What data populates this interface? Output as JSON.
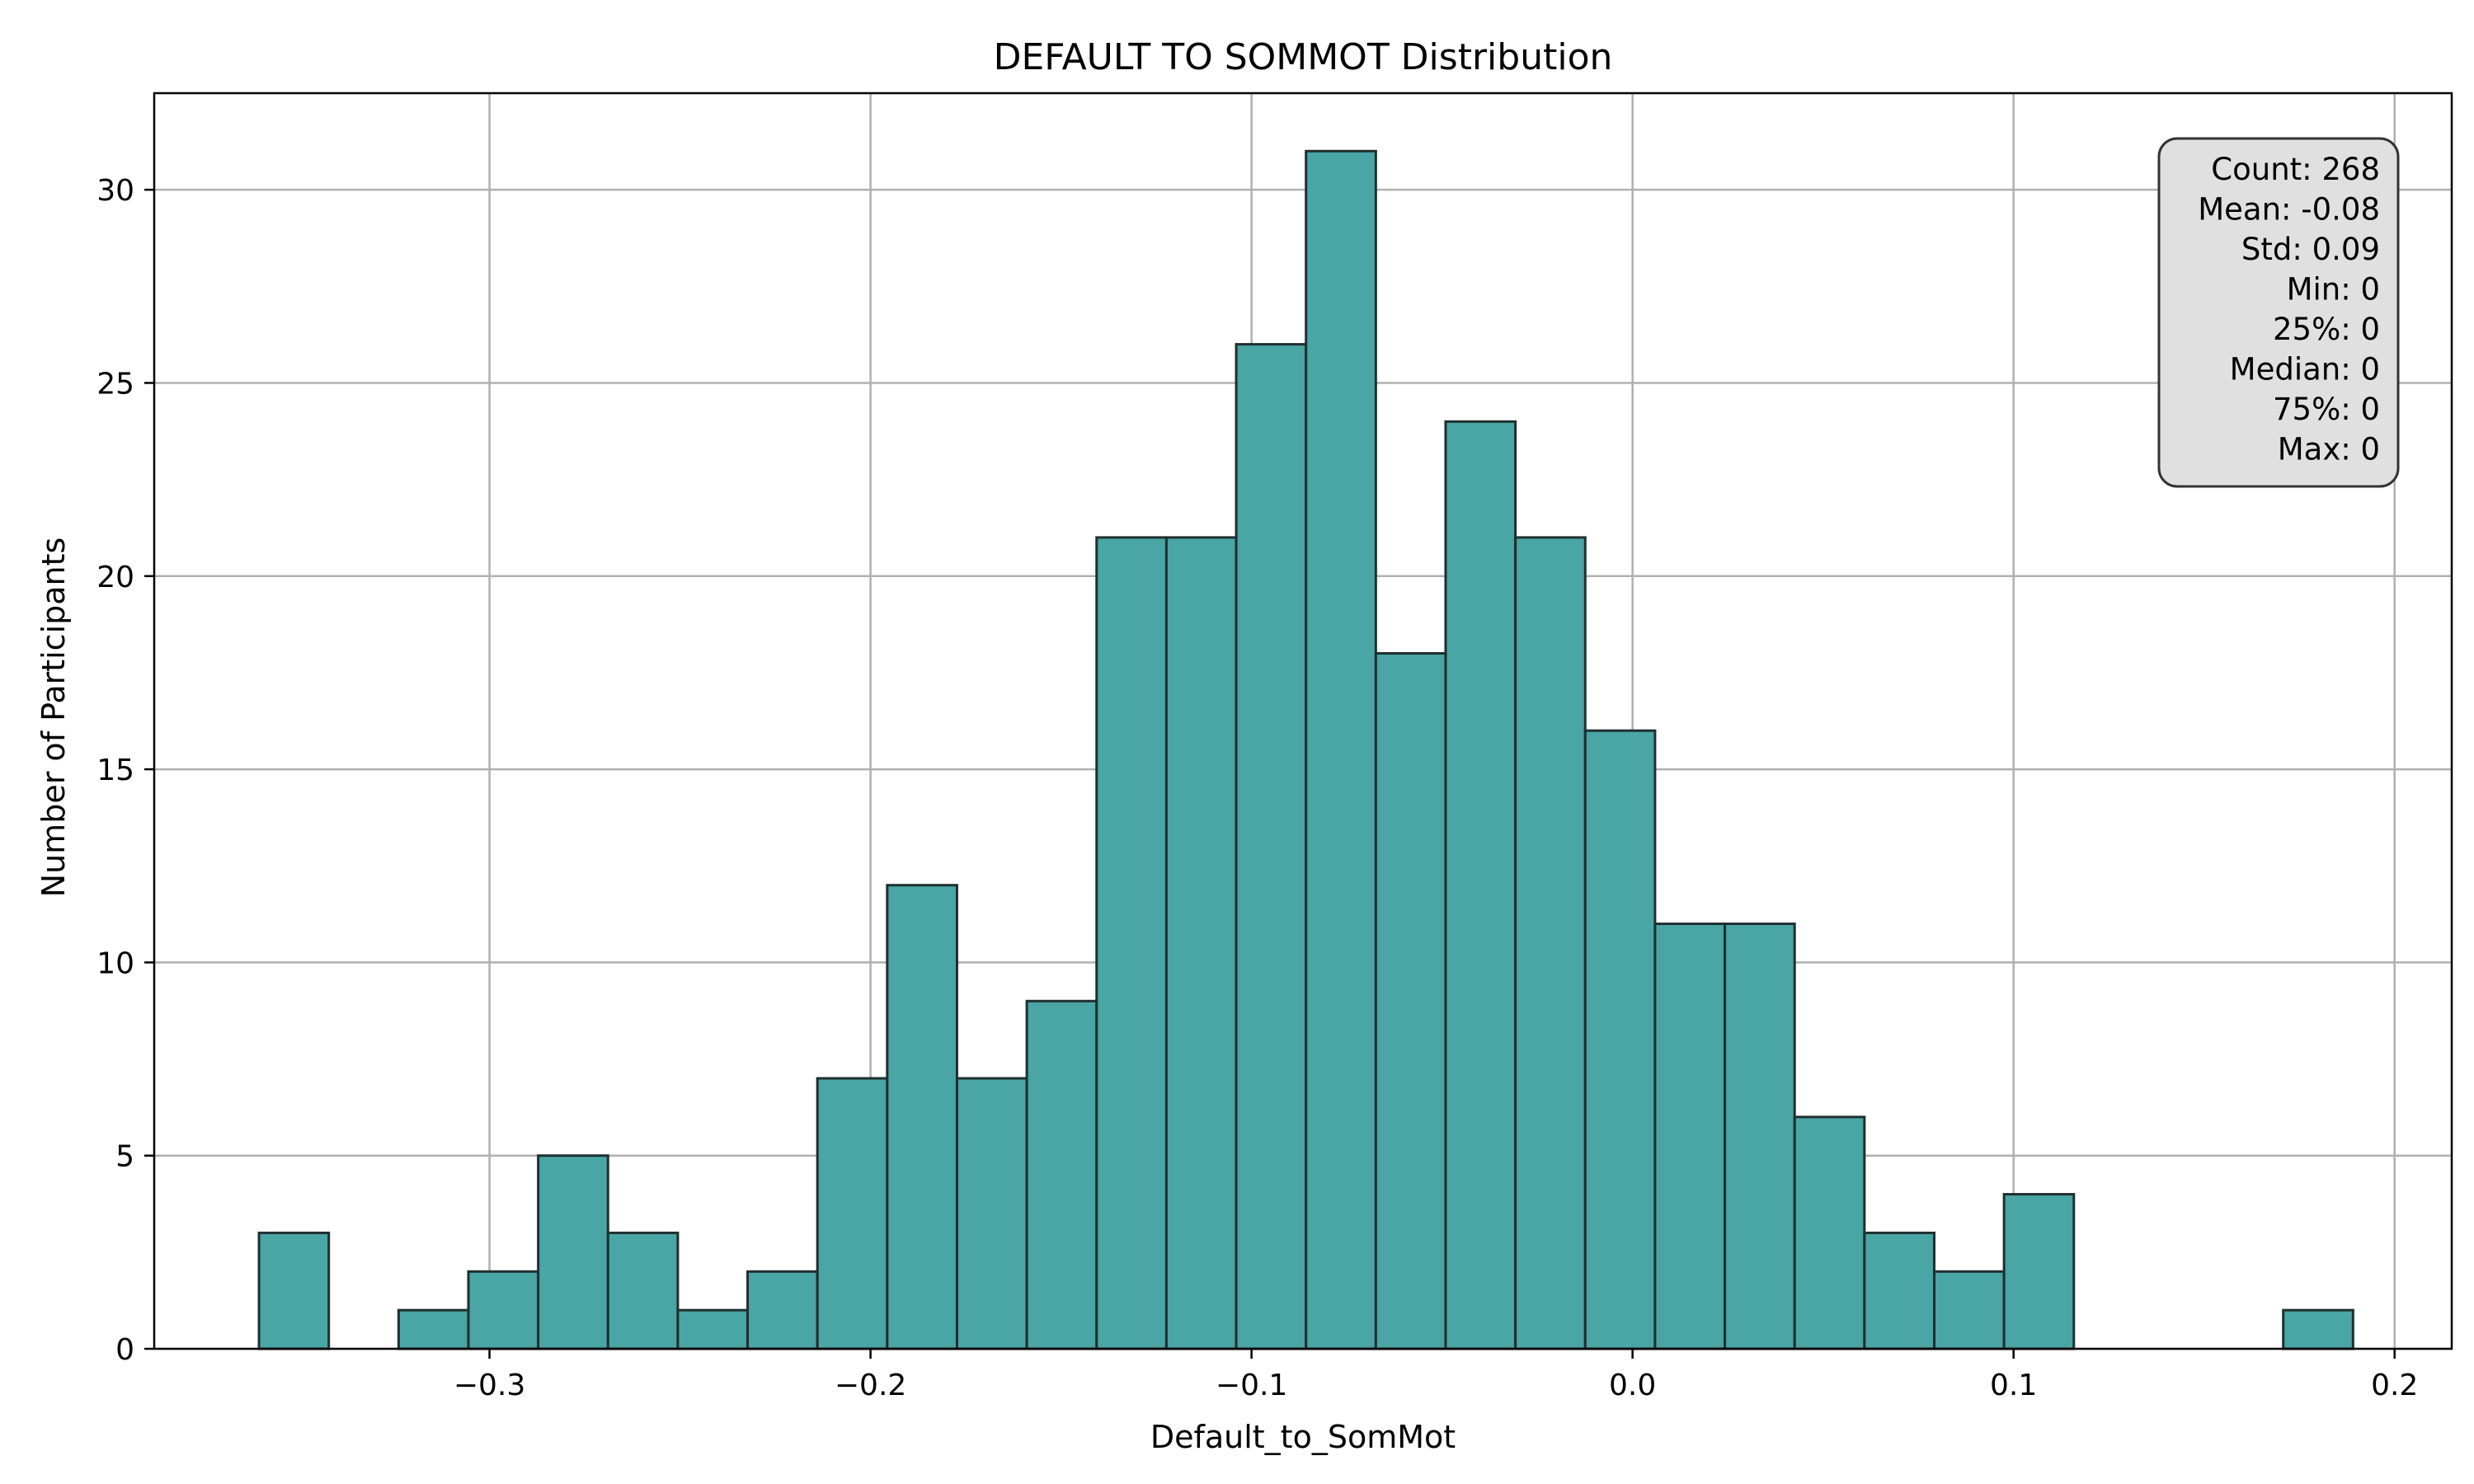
{
  "chart_data": {
    "type": "bar",
    "title": "DEFAULT TO SOMMOT Distribution",
    "xlabel": "Default_to_SomMot",
    "ylabel": "Number of Participants",
    "xlim": [
      -0.388,
      0.215
    ],
    "ylim": [
      0,
      32.5
    ],
    "grid": true,
    "bar_color": "#4aa5a5",
    "edge_color": "#1f2f2f",
    "x_ticks": [
      -0.3,
      -0.2,
      -0.1,
      0.0,
      0.1,
      0.2
    ],
    "x_tick_labels": [
      "−0.3",
      "−0.2",
      "−0.1",
      "0.0",
      "0.1",
      "0.2"
    ],
    "y_ticks": [
      0,
      5,
      10,
      15,
      20,
      25,
      30
    ],
    "y_tick_labels": [
      "0",
      "5",
      "10",
      "15",
      "20",
      "25",
      "30"
    ],
    "bin_start": -0.3605,
    "bin_width": 0.01832,
    "counts": [
      3,
      0,
      1,
      2,
      5,
      3,
      1,
      2,
      7,
      12,
      7,
      9,
      21,
      21,
      26,
      31,
      18,
      24,
      21,
      16,
      11,
      11,
      6,
      3,
      2,
      4,
      0,
      0,
      0,
      1
    ]
  },
  "stats_box": {
    "lines": [
      "Count: 268",
      "Mean: -0.08",
      "Std: 0.09",
      "Min: 0",
      "25%: 0",
      "Median: 0",
      "75%: 0",
      "Max: 0"
    ]
  }
}
